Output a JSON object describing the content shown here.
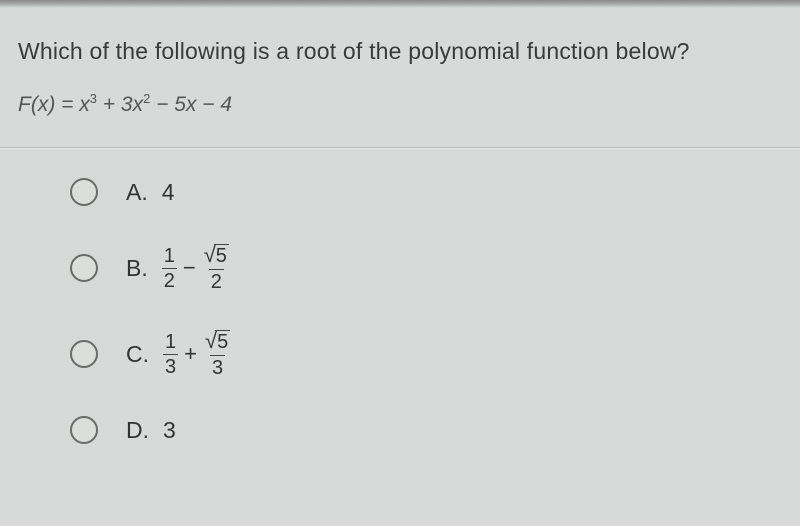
{
  "question": "Which of the following is a root of the polynomial function below?",
  "equation": {
    "lhs_fn": "F",
    "lhs_var": "x",
    "rhs_terms": "x³ + 3x² − 5x − 4"
  },
  "options": [
    {
      "letter": "A.",
      "type": "plain",
      "value": "4"
    },
    {
      "letter": "B.",
      "type": "frac_minus_sqrtfrac",
      "f1_num": "1",
      "f1_den": "2",
      "sqrt_arg": "5",
      "f2_den": "2"
    },
    {
      "letter": "C.",
      "type": "frac_plus_sqrtfrac",
      "f1_num": "1",
      "f1_den": "3",
      "sqrt_arg": "5",
      "f2_den": "3"
    },
    {
      "letter": "D.",
      "type": "plain",
      "value": "3"
    }
  ],
  "colors": {
    "background": "#d8dad9",
    "text": "#2a2a2a",
    "equation_text": "#555",
    "divider": "#b8b8b8",
    "radio_border": "#6a6a6a"
  },
  "fontsizes": {
    "question": 23,
    "equation": 21,
    "option": 23,
    "fraction": 20
  }
}
